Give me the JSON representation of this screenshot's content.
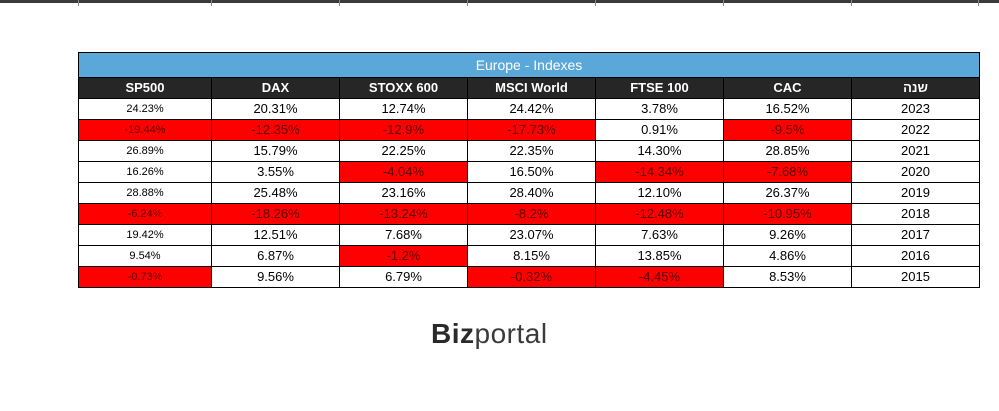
{
  "table": {
    "title": "Europe - Indexes",
    "headers": [
      "SP500",
      "DAX",
      "STOXX 600",
      "MSCI World",
      "FTSE 100",
      "CAC",
      "שנה"
    ],
    "rows": [
      {
        "cells": [
          "24.23%",
          "20.31%",
          "12.74%",
          "24.42%",
          "3.78%",
          "16.52%",
          "2023"
        ],
        "negative": [
          false,
          false,
          false,
          false,
          false,
          false,
          false
        ]
      },
      {
        "cells": [
          "-19.44%",
          "-12.35%",
          "-12.9%",
          "-17.73%",
          "0.91%",
          "-9.5%",
          "2022"
        ],
        "negative": [
          true,
          true,
          true,
          true,
          false,
          true,
          false
        ]
      },
      {
        "cells": [
          "26.89%",
          "15.79%",
          "22.25%",
          "22.35%",
          "14.30%",
          "28.85%",
          "2021"
        ],
        "negative": [
          false,
          false,
          false,
          false,
          false,
          false,
          false
        ]
      },
      {
        "cells": [
          "16.26%",
          "3.55%",
          "-4.04%",
          "16.50%",
          "-14.34%",
          "-7.68%",
          "2020"
        ],
        "negative": [
          false,
          false,
          true,
          false,
          true,
          true,
          false
        ]
      },
      {
        "cells": [
          "28.88%",
          "25.48%",
          "23.16%",
          "28.40%",
          "12.10%",
          "26.37%",
          "2019"
        ],
        "negative": [
          false,
          false,
          false,
          false,
          false,
          false,
          false
        ]
      },
      {
        "cells": [
          "-6.24%",
          "-18.26%",
          "-13.24%",
          "-8.2%",
          "-12.48%",
          "-10.95%",
          "2018"
        ],
        "negative": [
          true,
          true,
          true,
          true,
          true,
          true,
          false
        ]
      },
      {
        "cells": [
          "19.42%",
          "12.51%",
          "7.68%",
          "23.07%",
          "7.63%",
          "9.26%",
          "2017"
        ],
        "negative": [
          false,
          false,
          false,
          false,
          false,
          false,
          false
        ]
      },
      {
        "cells": [
          "9.54%",
          "6.87%",
          "-1.2%",
          "8.15%",
          "13.85%",
          "4.86%",
          "2016"
        ],
        "negative": [
          false,
          false,
          true,
          false,
          false,
          false,
          false
        ]
      },
      {
        "cells": [
          "-0.73%",
          "9.56%",
          "6.79%",
          "-0.32%",
          "-4.45%",
          "8.53%",
          "2015"
        ],
        "negative": [
          true,
          false,
          false,
          true,
          true,
          false,
          false
        ]
      }
    ]
  },
  "logo": {
    "part1": "Biz",
    "part2": "portal"
  },
  "colors": {
    "title_bg": "#5aa7d9",
    "header_bg": "#262626",
    "negative_bg": "#ff0000"
  }
}
